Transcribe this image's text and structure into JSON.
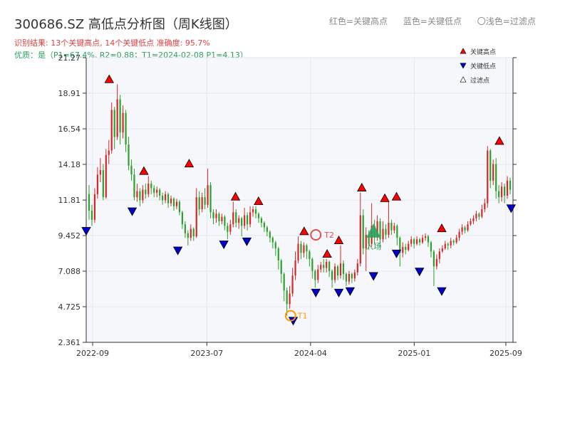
{
  "header": {
    "title": "300686.SZ 高低点分析图（周K线图）",
    "subtitle": "识别结果: 13个关键高点, 14个关键低点   准确度: 95.7%",
    "quality": "优质：是（P1=67.4%, R2=0.88；T1=2024-02-08 P1=4.13）"
  },
  "legend_top": {
    "red": "红色=关键高点",
    "blue": "蓝色=关键低点",
    "light": "〇浅色=过滤点"
  },
  "legend_box": {
    "high": "关键高点",
    "low": "关键低点",
    "filtered": "过滤点"
  },
  "colors": {
    "up": "#d62728",
    "down": "#2ca02c",
    "high_marker": "#ff0000",
    "low_marker": "#0000cc",
    "t1": "#ff9900",
    "t2": "#e05050",
    "entry": "#2ca25f",
    "plot_bg": "#f5f7fa"
  },
  "chart_data": {
    "type": "candlestick",
    "y_ticks": [
      "2.361",
      "4.725",
      "7.088",
      "9.452",
      "11.81",
      "14.18",
      "16.54",
      "18.91",
      "21.27"
    ],
    "ylim": [
      2.361,
      21.27
    ],
    "x_ticks": [
      "2022-09",
      "2023-07",
      "2024-04",
      "2025-01",
      "2025-09"
    ],
    "key_highs": [
      {
        "date": "2022-10",
        "value": 19.5
      },
      {
        "date": "2023-01",
        "value": 13.4
      },
      {
        "date": "2023-05",
        "value": 13.9
      },
      {
        "date": "2023-09",
        "value": 11.7
      },
      {
        "date": "2023-11",
        "value": 11.4
      },
      {
        "date": "2024-05",
        "value": 7.9
      },
      {
        "date": "2024-06",
        "value": 8.8
      },
      {
        "date": "2024-08",
        "value": 12.3
      },
      {
        "date": "2024-10",
        "value": 11.6
      },
      {
        "date": "2024-11",
        "value": 11.7
      },
      {
        "date": "2025-03",
        "value": 9.6
      },
      {
        "date": "2025-08",
        "value": 15.4
      },
      {
        "date": "2024-03",
        "value": 9.4
      }
    ],
    "key_lows": [
      {
        "date": "2022-08",
        "value": 10.1
      },
      {
        "date": "2022-12",
        "value": 11.4
      },
      {
        "date": "2023-04",
        "value": 8.8
      },
      {
        "date": "2023-08",
        "value": 9.2
      },
      {
        "date": "2023-10",
        "value": 9.4
      },
      {
        "date": "2024-02",
        "value": 4.13
      },
      {
        "date": "2024-04",
        "value": 6.0
      },
      {
        "date": "2024-06",
        "value": 6.0
      },
      {
        "date": "2024-07",
        "value": 6.1
      },
      {
        "date": "2024-09",
        "value": 7.1
      },
      {
        "date": "2024-11",
        "value": 8.6
      },
      {
        "date": "2025-01",
        "value": 7.4
      },
      {
        "date": "2025-03",
        "value": 6.1
      },
      {
        "date": "2025-09",
        "value": 11.6
      }
    ],
    "annotations": [
      {
        "label": "T1",
        "date": "2024-02-08",
        "value": 4.13
      },
      {
        "label": "T2",
        "date": "2024-04",
        "value": 9.5
      },
      {
        "label": "入场",
        "date": "2024-09",
        "value": 9.6
      }
    ],
    "candles": [
      [
        12.2,
        11.1,
        12.8,
        10.5
      ],
      [
        11.1,
        10.5,
        11.5,
        10.1
      ],
      [
        10.5,
        12.2,
        12.6,
        10.3
      ],
      [
        12.2,
        13.5,
        14.0,
        11.9
      ],
      [
        13.5,
        13.8,
        14.6,
        13.0
      ],
      [
        13.8,
        12.0,
        14.2,
        11.8
      ],
      [
        12.0,
        14.8,
        15.2,
        11.9
      ],
      [
        14.8,
        15.1,
        15.8,
        14.2
      ],
      [
        15.1,
        17.8,
        18.3,
        14.9
      ],
      [
        17.8,
        16.0,
        18.0,
        15.2
      ],
      [
        16.0,
        18.5,
        19.5,
        15.8
      ],
      [
        18.5,
        16.3,
        18.8,
        15.5
      ],
      [
        16.3,
        17.6,
        18.1,
        15.9
      ],
      [
        17.6,
        15.5,
        17.8,
        15.0
      ],
      [
        15.5,
        14.1,
        16.0,
        13.8
      ],
      [
        14.1,
        13.5,
        14.5,
        13.1
      ],
      [
        13.5,
        12.0,
        13.9,
        11.8
      ],
      [
        12.0,
        12.4,
        12.9,
        11.7
      ],
      [
        12.4,
        11.8,
        12.6,
        11.4
      ],
      [
        11.8,
        12.5,
        12.8,
        11.6
      ],
      [
        12.5,
        12.2,
        12.9,
        11.9
      ],
      [
        12.2,
        12.9,
        13.4,
        12.0
      ],
      [
        12.9,
        12.6,
        13.1,
        12.2
      ],
      [
        12.6,
        12.3,
        12.8,
        12.0
      ],
      [
        12.3,
        12.5,
        12.7,
        12.0
      ],
      [
        12.5,
        12.1,
        12.6,
        11.8
      ],
      [
        12.1,
        11.8,
        12.3,
        11.5
      ],
      [
        11.8,
        12.2,
        12.4,
        11.6
      ],
      [
        12.2,
        11.6,
        12.3,
        11.3
      ],
      [
        11.6,
        11.9,
        12.1,
        11.4
      ],
      [
        11.9,
        11.4,
        12.0,
        11.1
      ],
      [
        11.4,
        11.7,
        11.9,
        11.2
      ],
      [
        11.7,
        11.0,
        11.8,
        10.8
      ],
      [
        11.0,
        10.2,
        11.1,
        9.9
      ],
      [
        10.2,
        9.6,
        10.4,
        9.3
      ],
      [
        9.6,
        9.3,
        9.8,
        8.8
      ],
      [
        9.3,
        9.9,
        10.2,
        9.1
      ],
      [
        9.9,
        9.4,
        10.0,
        9.1
      ],
      [
        9.4,
        12.0,
        12.6,
        9.3
      ],
      [
        12.0,
        11.2,
        12.4,
        10.8
      ],
      [
        11.2,
        12.0,
        12.3,
        11.0
      ],
      [
        12.0,
        11.5,
        12.6,
        11.2
      ],
      [
        11.5,
        12.8,
        13.9,
        11.3
      ],
      [
        12.8,
        11.0,
        13.0,
        10.6
      ],
      [
        11.0,
        10.6,
        11.2,
        10.2
      ],
      [
        10.6,
        10.9,
        11.2,
        10.3
      ],
      [
        10.9,
        10.4,
        11.0,
        10.1
      ],
      [
        10.4,
        10.7,
        10.9,
        10.2
      ],
      [
        10.7,
        10.1,
        10.8,
        9.8
      ],
      [
        10.1,
        9.7,
        10.3,
        9.2
      ],
      [
        9.7,
        10.2,
        10.5,
        9.5
      ],
      [
        10.2,
        11.0,
        11.7,
        10.0
      ],
      [
        11.0,
        10.3,
        11.2,
        10.0
      ],
      [
        10.3,
        10.6,
        10.8,
        9.9
      ],
      [
        10.6,
        10.1,
        10.7,
        9.4
      ],
      [
        10.1,
        10.8,
        11.3,
        9.9
      ],
      [
        10.8,
        10.2,
        11.0,
        9.8
      ],
      [
        10.2,
        11.0,
        11.4,
        10.0
      ],
      [
        11.0,
        11.2,
        11.4,
        10.7
      ],
      [
        11.2,
        10.9,
        11.4,
        10.6
      ],
      [
        10.9,
        10.6,
        11.0,
        10.3
      ],
      [
        10.6,
        10.3,
        10.7,
        10.0
      ],
      [
        10.3,
        10.0,
        10.4,
        9.7
      ],
      [
        10.0,
        9.7,
        10.1,
        9.4
      ],
      [
        9.7,
        9.3,
        9.8,
        9.0
      ],
      [
        9.3,
        9.0,
        9.4,
        8.6
      ],
      [
        9.0,
        8.6,
        9.1,
        8.1
      ],
      [
        8.6,
        7.8,
        8.7,
        7.2
      ],
      [
        7.8,
        6.9,
        7.9,
        6.3
      ],
      [
        6.9,
        5.8,
        7.0,
        5.1
      ],
      [
        5.8,
        4.9,
        6.0,
        4.13
      ],
      [
        4.9,
        5.6,
        6.1,
        4.6
      ],
      [
        5.6,
        6.8,
        7.3,
        5.4
      ],
      [
        6.8,
        7.8,
        8.4,
        6.5
      ],
      [
        7.8,
        8.9,
        9.4,
        7.6
      ],
      [
        8.9,
        8.3,
        9.1,
        7.9
      ],
      [
        8.3,
        8.8,
        9.0,
        8.0
      ],
      [
        8.8,
        8.4,
        8.9,
        7.9
      ],
      [
        8.4,
        7.9,
        8.5,
        7.4
      ],
      [
        7.9,
        7.1,
        8.0,
        6.6
      ],
      [
        7.1,
        6.5,
        7.2,
        6.0
      ],
      [
        6.5,
        7.2,
        7.5,
        6.3
      ],
      [
        7.2,
        7.5,
        7.7,
        7.0
      ],
      [
        7.5,
        7.3,
        7.9,
        7.0
      ],
      [
        7.3,
        7.7,
        7.9,
        7.0
      ],
      [
        7.7,
        7.1,
        7.8,
        6.7
      ],
      [
        7.1,
        6.5,
        7.2,
        6.0
      ],
      [
        6.5,
        7.4,
        7.6,
        6.3
      ],
      [
        7.4,
        6.8,
        7.5,
        6.5
      ],
      [
        6.8,
        7.6,
        8.8,
        6.6
      ],
      [
        7.6,
        6.9,
        7.8,
        6.5
      ],
      [
        6.9,
        6.4,
        7.0,
        6.1
      ],
      [
        6.4,
        6.9,
        7.1,
        6.2
      ],
      [
        6.9,
        6.6,
        7.0,
        6.3
      ],
      [
        6.6,
        7.0,
        7.2,
        6.4
      ],
      [
        7.0,
        7.6,
        7.9,
        6.8
      ],
      [
        7.6,
        10.8,
        12.3,
        7.4
      ],
      [
        10.8,
        8.6,
        11.2,
        8.2
      ],
      [
        8.6,
        9.5,
        10.0,
        7.1
      ],
      [
        9.5,
        8.9,
        9.8,
        8.5
      ],
      [
        8.9,
        10.1,
        11.6,
        8.7
      ],
      [
        10.1,
        9.4,
        10.5,
        8.9
      ],
      [
        9.4,
        10.4,
        10.8,
        9.1
      ],
      [
        10.4,
        9.2,
        10.6,
        8.6
      ],
      [
        9.2,
        9.9,
        10.4,
        9.0
      ],
      [
        9.9,
        9.5,
        10.2,
        9.2
      ],
      [
        9.5,
        10.3,
        11.7,
        9.3
      ],
      [
        10.3,
        9.8,
        10.5,
        9.5
      ],
      [
        9.8,
        10.1,
        10.3,
        9.6
      ],
      [
        10.1,
        9.3,
        10.2,
        8.8
      ],
      [
        9.3,
        8.3,
        9.4,
        7.4
      ],
      [
        8.3,
        8.7,
        9.0,
        8.0
      ],
      [
        8.7,
        8.5,
        8.9,
        8.2
      ],
      [
        8.5,
        8.9,
        9.1,
        8.4
      ],
      [
        8.9,
        9.2,
        9.4,
        8.7
      ],
      [
        9.2,
        8.9,
        9.3,
        8.6
      ],
      [
        8.9,
        9.2,
        9.4,
        8.8
      ],
      [
        9.2,
        9.0,
        9.3,
        8.8
      ],
      [
        9.0,
        9.3,
        9.5,
        8.9
      ],
      [
        9.3,
        9.4,
        9.6,
        9.1
      ],
      [
        9.4,
        9.0,
        9.5,
        8.7
      ],
      [
        9.0,
        8.4,
        9.1,
        8.0
      ],
      [
        8.4,
        7.4,
        8.5,
        6.1
      ],
      [
        7.4,
        7.9,
        8.2,
        7.2
      ],
      [
        7.9,
        8.4,
        8.6,
        7.6
      ],
      [
        8.4,
        8.6,
        8.8,
        8.3
      ],
      [
        8.6,
        8.9,
        9.1,
        8.5
      ],
      [
        8.9,
        8.8,
        9.0,
        8.5
      ],
      [
        8.8,
        9.1,
        9.3,
        8.6
      ],
      [
        9.1,
        9.0,
        9.2,
        8.8
      ],
      [
        9.0,
        9.3,
        9.5,
        8.9
      ],
      [
        9.3,
        9.7,
        9.9,
        9.1
      ],
      [
        9.7,
        10.0,
        10.2,
        9.5
      ],
      [
        10.0,
        9.8,
        10.1,
        9.6
      ],
      [
        9.8,
        10.2,
        10.4,
        9.7
      ],
      [
        10.2,
        10.4,
        10.6,
        10.1
      ],
      [
        10.4,
        10.6,
        10.8,
        10.2
      ],
      [
        10.6,
        10.9,
        11.1,
        10.4
      ],
      [
        10.9,
        10.7,
        11.0,
        10.5
      ],
      [
        10.7,
        11.2,
        11.5,
        10.6
      ],
      [
        11.2,
        11.6,
        11.9,
        11.0
      ],
      [
        11.6,
        15.1,
        15.4,
        11.3
      ],
      [
        15.1,
        13.1,
        15.2,
        12.6
      ],
      [
        13.1,
        14.2,
        14.5,
        12.8
      ],
      [
        14.2,
        12.4,
        14.6,
        11.9
      ],
      [
        12.4,
        12.0,
        12.8,
        11.6
      ],
      [
        12.0,
        12.7,
        13.0,
        11.7
      ],
      [
        12.7,
        12.1,
        12.9,
        11.6
      ],
      [
        12.1,
        13.1,
        13.4,
        11.9
      ],
      [
        13.1,
        12.5,
        13.3,
        12.2
      ]
    ]
  }
}
